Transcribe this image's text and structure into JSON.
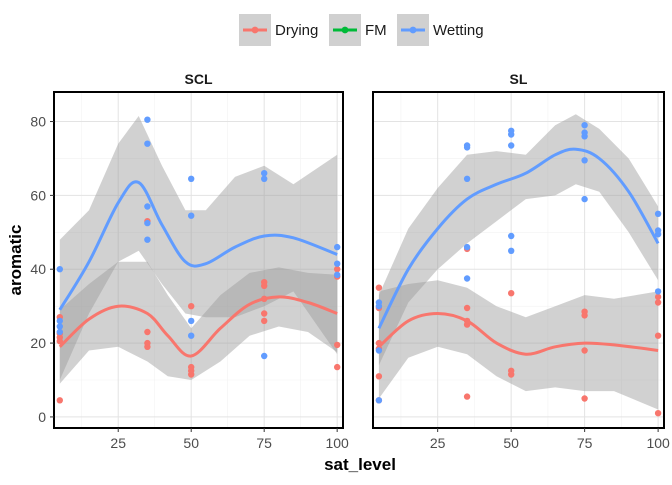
{
  "chart_data": {
    "type": "scatter",
    "xlabel": "sat_level",
    "ylabel": "aromatic",
    "xlim": [
      3,
      102
    ],
    "ylim": [
      -3,
      88
    ],
    "x_ticks": [
      25,
      50,
      75,
      100
    ],
    "y_ticks": [
      0,
      20,
      40,
      60,
      80
    ],
    "grid": true,
    "smoother": "loess with confidence band",
    "legend": {
      "position": "top",
      "items": [
        {
          "label": "Drying",
          "color": "#F8766D"
        },
        {
          "label": "FM",
          "color": "#00BA38"
        },
        {
          "label": "Wetting",
          "color": "#619CFF"
        }
      ]
    },
    "panels": [
      {
        "title": "SCL",
        "series": [
          {
            "name": "Drying",
            "color": "#F8766D",
            "points": [
              [
                5,
                4.5
              ],
              [
                5,
                20.5
              ],
              [
                5,
                21.5
              ],
              [
                5,
                22.5
              ],
              [
                5,
                27
              ],
              [
                35,
                19
              ],
              [
                35,
                20
              ],
              [
                35,
                23
              ],
              [
                35,
                53
              ],
              [
                50,
                11.5
              ],
              [
                50,
                12.5
              ],
              [
                50,
                13.5
              ],
              [
                50,
                30
              ],
              [
                75,
                26
              ],
              [
                75,
                28
              ],
              [
                75,
                32
              ],
              [
                75,
                35.5
              ],
              [
                75,
                36.5
              ],
              [
                100,
                13.5
              ],
              [
                100,
                19.5
              ],
              [
                100,
                38
              ],
              [
                100,
                40
              ]
            ],
            "smooth": [
              [
                5,
                19
              ],
              [
                15,
                26.5
              ],
              [
                25,
                30
              ],
              [
                35,
                28
              ],
              [
                42,
                22
              ],
              [
                50,
                16.5
              ],
              [
                60,
                24
              ],
              [
                70,
                30.5
              ],
              [
                80,
                32.5
              ],
              [
                90,
                31
              ],
              [
                100,
                28
              ]
            ],
            "band_upper": [
              [
                5,
                29
              ],
              [
                15,
                36
              ],
              [
                25,
                42
              ],
              [
                35,
                42
              ],
              [
                42,
                33
              ],
              [
                50,
                24
              ],
              [
                60,
                33
              ],
              [
                70,
                39
              ],
              [
                80,
                40.5
              ],
              [
                90,
                39
              ],
              [
                100,
                38.5
              ]
            ],
            "band_lower": [
              [
                5,
                9
              ],
              [
                15,
                18
              ],
              [
                25,
                19
              ],
              [
                35,
                15
              ],
              [
                42,
                11
              ],
              [
                50,
                10
              ],
              [
                60,
                15
              ],
              [
                70,
                22
              ],
              [
                80,
                24.5
              ],
              [
                90,
                23
              ],
              [
                100,
                17.5
              ]
            ]
          },
          {
            "name": "Wetting",
            "color": "#619CFF",
            "points": [
              [
                5,
                23
              ],
              [
                5,
                24.5
              ],
              [
                5,
                26
              ],
              [
                5,
                40
              ],
              [
                35,
                48
              ],
              [
                35,
                52.5
              ],
              [
                35,
                57
              ],
              [
                35,
                74
              ],
              [
                35,
                80.5
              ],
              [
                50,
                22
              ],
              [
                50,
                26
              ],
              [
                50,
                54.5
              ],
              [
                50,
                64.5
              ],
              [
                75,
                16.5
              ],
              [
                75,
                64.5
              ],
              [
                75,
                66
              ],
              [
                100,
                38.5
              ],
              [
                100,
                41.5
              ],
              [
                100,
                46
              ]
            ],
            "smooth": [
              [
                5,
                29
              ],
              [
                15,
                42
              ],
              [
                25,
                58
              ],
              [
                32,
                63.5
              ],
              [
                40,
                52
              ],
              [
                48,
                42
              ],
              [
                55,
                41.5
              ],
              [
                65,
                46
              ],
              [
                75,
                49
              ],
              [
                85,
                48.5
              ],
              [
                100,
                44
              ]
            ],
            "band_upper": [
              [
                5,
                48
              ],
              [
                15,
                56
              ],
              [
                25,
                74
              ],
              [
                32,
                81.5
              ],
              [
                40,
                68
              ],
              [
                48,
                56
              ],
              [
                55,
                56
              ],
              [
                65,
                65
              ],
              [
                75,
                68
              ],
              [
                85,
                63
              ],
              [
                100,
                71
              ]
            ],
            "band_lower": [
              [
                5,
                10
              ],
              [
                15,
                28
              ],
              [
                25,
                42
              ],
              [
                32,
                45
              ],
              [
                40,
                36
              ],
              [
                48,
                28
              ],
              [
                55,
                27
              ],
              [
                65,
                27
              ],
              [
                75,
                30
              ],
              [
                85,
                34
              ],
              [
                100,
                17
              ]
            ]
          }
        ]
      },
      {
        "title": "SL",
        "series": [
          {
            "name": "Drying",
            "color": "#F8766D",
            "points": [
              [
                5,
                4.5
              ],
              [
                5,
                11
              ],
              [
                5,
                18.5
              ],
              [
                5,
                20
              ],
              [
                5,
                29.5
              ],
              [
                5,
                35
              ],
              [
                35,
                5.5
              ],
              [
                35,
                25
              ],
              [
                35,
                26
              ],
              [
                35,
                29.5
              ],
              [
                35,
                45.5
              ],
              [
                50,
                11.5
              ],
              [
                50,
                12.5
              ],
              [
                50,
                33.5
              ],
              [
                75,
                5
              ],
              [
                75,
                18
              ],
              [
                75,
                27.5
              ],
              [
                75,
                28.5
              ],
              [
                100,
                1
              ],
              [
                100,
                22
              ],
              [
                100,
                31
              ],
              [
                100,
                32.5
              ]
            ],
            "smooth": [
              [
                5,
                19
              ],
              [
                15,
                26
              ],
              [
                25,
                28
              ],
              [
                35,
                26
              ],
              [
                45,
                20
              ],
              [
                55,
                17
              ],
              [
                65,
                19
              ],
              [
                75,
                20
              ],
              [
                85,
                19.5
              ],
              [
                100,
                18
              ]
            ],
            "band_upper": [
              [
                5,
                34
              ],
              [
                15,
                36
              ],
              [
                25,
                37
              ],
              [
                35,
                35
              ],
              [
                45,
                30
              ],
              [
                55,
                27
              ],
              [
                65,
                30
              ],
              [
                75,
                33
              ],
              [
                85,
                32
              ],
              [
                100,
                34
              ]
            ],
            "band_lower": [
              [
                5,
                5
              ],
              [
                15,
                16
              ],
              [
                25,
                19
              ],
              [
                35,
                17
              ],
              [
                45,
                11
              ],
              [
                55,
                7
              ],
              [
                65,
                8
              ],
              [
                75,
                7
              ],
              [
                85,
                7
              ],
              [
                100,
                2
              ]
            ]
          },
          {
            "name": "Wetting",
            "color": "#619CFF",
            "points": [
              [
                5,
                4.5
              ],
              [
                5,
                18
              ],
              [
                5,
                30
              ],
              [
                5,
                31
              ],
              [
                35,
                37.5
              ],
              [
                35,
                46
              ],
              [
                35,
                64.5
              ],
              [
                35,
                73
              ],
              [
                35,
                73.5
              ],
              [
                50,
                45
              ],
              [
                50,
                49
              ],
              [
                50,
                73.5
              ],
              [
                50,
                76.5
              ],
              [
                50,
                77.5
              ],
              [
                75,
                59
              ],
              [
                75,
                69.5
              ],
              [
                75,
                76
              ],
              [
                75,
                77
              ],
              [
                75,
                79
              ],
              [
                100,
                34
              ],
              [
                100,
                49.5
              ],
              [
                100,
                50.5
              ],
              [
                100,
                55
              ]
            ],
            "smooth": [
              [
                5,
                24
              ],
              [
                15,
                40
              ],
              [
                25,
                51
              ],
              [
                35,
                59
              ],
              [
                45,
                63
              ],
              [
                55,
                66
              ],
              [
                65,
                71
              ],
              [
                72,
                72.5
              ],
              [
                80,
                70
              ],
              [
                90,
                61
              ],
              [
                100,
                47
              ]
            ],
            "band_upper": [
              [
                5,
                33
              ],
              [
                15,
                51
              ],
              [
                25,
                62
              ],
              [
                35,
                71
              ],
              [
                45,
                72
              ],
              [
                55,
                71
              ],
              [
                65,
                79
              ],
              [
                72,
                82
              ],
              [
                80,
                78
              ],
              [
                90,
                70
              ],
              [
                100,
                57
              ]
            ],
            "band_lower": [
              [
                5,
                14
              ],
              [
                15,
                31
              ],
              [
                25,
                40
              ],
              [
                35,
                47
              ],
              [
                45,
                53
              ],
              [
                55,
                59
              ],
              [
                65,
                60
              ],
              [
                72,
                63
              ],
              [
                80,
                61
              ],
              [
                90,
                50
              ],
              [
                100,
                37
              ]
            ]
          }
        ]
      }
    ]
  }
}
